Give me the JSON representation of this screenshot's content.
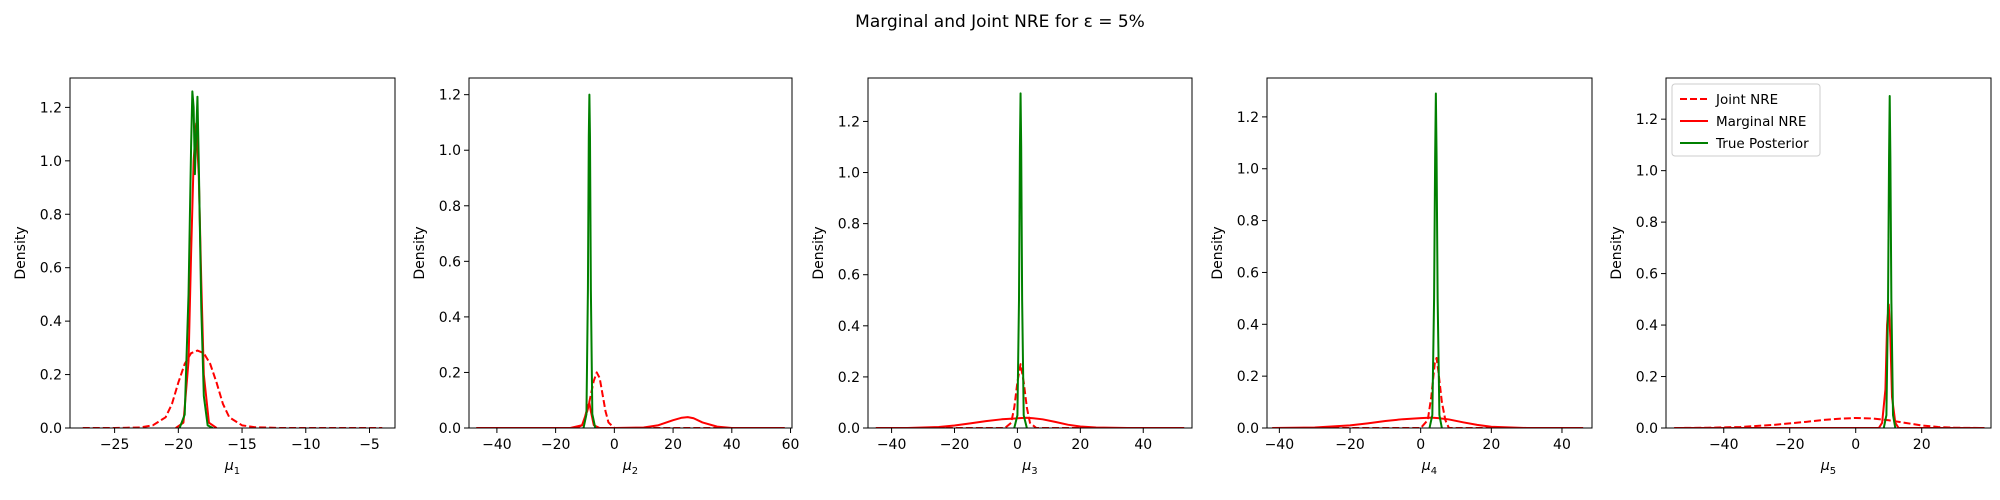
{
  "figure": {
    "title": "Marginal and Joint NRE for ε = 5%"
  },
  "colors": {
    "joint": "#ff0000",
    "marginal": "#ff0000",
    "true": "#008000"
  },
  "chart_data": [
    {
      "type": "line",
      "xlabel": "μ1",
      "xlabel_base": "μ",
      "xlabel_sub": "1",
      "ylabel": "Density",
      "xlim": [
        -28.5,
        -3.0
      ],
      "ylim": [
        0,
        1.31
      ],
      "xticks": [
        -25,
        -20,
        -15,
        -10,
        -5
      ],
      "yticks": [
        0.0,
        0.2,
        0.4,
        0.6,
        0.8,
        1.0,
        1.2
      ],
      "legend": null,
      "series": [
        {
          "name": "Joint NRE",
          "style": "dashed",
          "color": "#ff0000",
          "x": [
            -27.5,
            -25,
            -23,
            -22,
            -21,
            -20.5,
            -20,
            -19.5,
            -19,
            -18.5,
            -18,
            -17.5,
            -17,
            -16.5,
            -16,
            -15,
            -14,
            -12,
            -8,
            -4
          ],
          "y": [
            0.0,
            0.0,
            0.002,
            0.01,
            0.04,
            0.09,
            0.17,
            0.24,
            0.28,
            0.29,
            0.28,
            0.24,
            0.17,
            0.09,
            0.04,
            0.01,
            0.003,
            0.0,
            0.0,
            0.0
          ]
        },
        {
          "name": "Marginal NRE",
          "style": "solid",
          "color": "#ff0000",
          "x": [
            -20.2,
            -19.6,
            -19.2,
            -19.0,
            -18.8,
            -18.6,
            -18.4,
            -18.2,
            -18.0,
            -17.6,
            -17.0
          ],
          "y": [
            0.0,
            0.02,
            0.25,
            0.65,
            1.0,
            1.14,
            0.95,
            0.55,
            0.2,
            0.02,
            0.0
          ]
        },
        {
          "name": "True Posterior",
          "style": "solid",
          "color": "#008000",
          "x": [
            -19.9,
            -19.5,
            -19.2,
            -19.0,
            -18.9,
            -18.8,
            -18.7,
            -18.6,
            -18.5,
            -18.4,
            -18.2,
            -18.0,
            -17.7,
            -17.3
          ],
          "y": [
            0.0,
            0.05,
            0.5,
            1.05,
            1.26,
            1.2,
            0.95,
            1.1,
            1.24,
            1.0,
            0.45,
            0.12,
            0.01,
            0.0
          ]
        }
      ]
    },
    {
      "type": "line",
      "xlabel": "μ2",
      "xlabel_base": "μ",
      "xlabel_sub": "2",
      "ylabel": "Density",
      "xlim": [
        -49.5,
        60.5
      ],
      "ylim": [
        0,
        1.26
      ],
      "xticks": [
        -40,
        -20,
        0,
        20,
        40,
        60
      ],
      "yticks": [
        0.0,
        0.2,
        0.4,
        0.6,
        0.8,
        1.0,
        1.2
      ],
      "legend": null,
      "series": [
        {
          "name": "Joint NRE",
          "style": "dashed",
          "color": "#ff0000",
          "x": [
            -47,
            -20,
            -13,
            -11,
            -10,
            -9,
            -8,
            -7,
            -6,
            -5,
            -4,
            -3,
            -2,
            0,
            10,
            30,
            58
          ],
          "y": [
            0.0,
            0.0,
            0.0,
            0.01,
            0.03,
            0.07,
            0.12,
            0.17,
            0.2,
            0.18,
            0.12,
            0.06,
            0.02,
            0.0,
            0.0,
            0.0,
            0.0
          ]
        },
        {
          "name": "Marginal NRE",
          "style": "solid",
          "color": "#ff0000",
          "x": [
            -47,
            -15,
            -11,
            -10,
            -9,
            -8.5,
            -8,
            -7,
            -5,
            0,
            10,
            15,
            20,
            23,
            25,
            27,
            30,
            35,
            40,
            58
          ],
          "y": [
            0.0,
            0.0,
            0.01,
            0.04,
            0.08,
            0.09,
            0.06,
            0.01,
            0.0,
            0.0,
            0.002,
            0.01,
            0.028,
            0.037,
            0.039,
            0.035,
            0.02,
            0.005,
            0.0,
            0.0
          ]
        },
        {
          "name": "True Posterior",
          "style": "solid",
          "color": "#008000",
          "x": [
            -10.5,
            -9.5,
            -9.0,
            -8.7,
            -8.5,
            -8.3,
            -8.0,
            -7.5,
            -6.5
          ],
          "y": [
            0.0,
            0.05,
            0.5,
            1.05,
            1.2,
            1.05,
            0.5,
            0.05,
            0.0
          ]
        }
      ]
    },
    {
      "type": "line",
      "xlabel": "μ3",
      "xlabel_base": "μ",
      "xlabel_sub": "3",
      "ylabel": "Density",
      "xlim": [
        -47.5,
        55.5
      ],
      "ylim": [
        0,
        1.37
      ],
      "xticks": [
        -40,
        -20,
        0,
        20,
        40
      ],
      "yticks": [
        0.0,
        0.2,
        0.4,
        0.6,
        0.8,
        1.0,
        1.2
      ],
      "legend": null,
      "series": [
        {
          "name": "Joint NRE",
          "style": "dashed",
          "color": "#ff0000",
          "x": [
            -45,
            -10,
            -4,
            -2,
            -1,
            0,
            1,
            2,
            3,
            4,
            6,
            10,
            53
          ],
          "y": [
            0.0,
            0.0,
            0.0,
            0.02,
            0.08,
            0.18,
            0.25,
            0.18,
            0.08,
            0.02,
            0.0,
            0.0,
            0.0
          ]
        },
        {
          "name": "Marginal NRE",
          "style": "solid",
          "color": "#ff0000",
          "x": [
            -45,
            -35,
            -25,
            -20,
            -15,
            -10,
            -5,
            0,
            3,
            5,
            8,
            12,
            16,
            20,
            25,
            35,
            53
          ],
          "y": [
            0.0,
            0.0,
            0.004,
            0.01,
            0.018,
            0.027,
            0.034,
            0.038,
            0.04,
            0.038,
            0.034,
            0.024,
            0.013,
            0.006,
            0.002,
            0.0,
            0.0
          ]
        },
        {
          "name": "True Posterior",
          "style": "solid",
          "color": "#008000",
          "x": [
            -1.0,
            0.0,
            0.5,
            0.8,
            1.0,
            1.2,
            1.5,
            2.0,
            3.0
          ],
          "y": [
            0.0,
            0.05,
            0.5,
            1.1,
            1.31,
            1.1,
            0.5,
            0.05,
            0.0
          ]
        }
      ]
    },
    {
      "type": "line",
      "xlabel": "μ4",
      "xlabel_base": "μ",
      "xlabel_sub": "4",
      "ylabel": "Density",
      "xlim": [
        -43.5,
        48.5
      ],
      "ylim": [
        0,
        1.35
      ],
      "xticks": [
        -40,
        -20,
        0,
        20,
        40
      ],
      "yticks": [
        0.0,
        0.2,
        0.4,
        0.6,
        0.8,
        1.0,
        1.2
      ],
      "legend": null,
      "series": [
        {
          "name": "Joint NRE",
          "style": "dashed",
          "color": "#ff0000",
          "x": [
            -42,
            -10,
            0,
            2,
            3,
            4,
            4.5,
            5,
            6,
            7,
            8,
            12,
            46
          ],
          "y": [
            0.0,
            0.0,
            0.0,
            0.03,
            0.12,
            0.25,
            0.27,
            0.22,
            0.1,
            0.03,
            0.0,
            0.0,
            0.0
          ]
        },
        {
          "name": "Marginal NRE",
          "style": "solid",
          "color": "#ff0000",
          "x": [
            -42,
            -30,
            -20,
            -15,
            -10,
            -5,
            0,
            3,
            5,
            8,
            12,
            16,
            20,
            30,
            46
          ],
          "y": [
            0.0,
            0.002,
            0.01,
            0.018,
            0.027,
            0.034,
            0.038,
            0.04,
            0.038,
            0.033,
            0.022,
            0.012,
            0.005,
            0.0,
            0.0
          ]
        },
        {
          "name": "True Posterior",
          "style": "solid",
          "color": "#008000",
          "x": [
            2.5,
            3.3,
            3.8,
            4.1,
            4.3,
            4.5,
            4.8,
            5.3,
            6.0
          ],
          "y": [
            0.0,
            0.05,
            0.5,
            1.05,
            1.29,
            1.05,
            0.5,
            0.05,
            0.0
          ]
        }
      ]
    },
    {
      "type": "line",
      "xlabel": "μ5",
      "xlabel_base": "μ",
      "xlabel_sub": "5",
      "ylabel": "Density",
      "xlim": [
        -57.5,
        41.0
      ],
      "ylim": [
        0,
        1.36
      ],
      "xticks": [
        -40,
        -20,
        0,
        20
      ],
      "yticks": [
        0.0,
        0.2,
        0.4,
        0.6,
        0.8,
        1.0,
        1.2
      ],
      "legend": {
        "placement": "upper-left",
        "entries": [
          {
            "label": "Joint NRE",
            "style": "dashed",
            "color": "#ff0000"
          },
          {
            "label": "Marginal NRE",
            "style": "solid",
            "color": "#ff0000"
          },
          {
            "label": "True Posterior",
            "style": "solid",
            "color": "#008000"
          }
        ]
      },
      "series": [
        {
          "name": "Joint NRE",
          "style": "dashed",
          "color": "#ff0000",
          "x": [
            -55,
            -45,
            -35,
            -25,
            -20,
            -15,
            -10,
            -5,
            0,
            5,
            10,
            15,
            20,
            25,
            30,
            39
          ],
          "y": [
            0.0,
            0.001,
            0.004,
            0.012,
            0.018,
            0.024,
            0.031,
            0.036,
            0.039,
            0.037,
            0.03,
            0.02,
            0.01,
            0.004,
            0.001,
            0.0
          ]
        },
        {
          "name": "Marginal NRE",
          "style": "solid",
          "color": "#ff0000",
          "x": [
            -55,
            0,
            7,
            8,
            9,
            9.5,
            10,
            10.5,
            11,
            12,
            13,
            20,
            39
          ],
          "y": [
            0.0,
            0.0,
            0.0,
            0.02,
            0.15,
            0.4,
            0.48,
            0.35,
            0.12,
            0.02,
            0.0,
            0.0,
            0.0
          ]
        },
        {
          "name": "True Posterior",
          "style": "solid",
          "color": "#008000",
          "x": [
            8.5,
            9.3,
            9.8,
            10.1,
            10.3,
            10.5,
            10.8,
            11.3,
            12.0
          ],
          "y": [
            0.0,
            0.05,
            0.5,
            1.05,
            1.29,
            1.05,
            0.5,
            0.05,
            0.0
          ]
        }
      ]
    }
  ]
}
